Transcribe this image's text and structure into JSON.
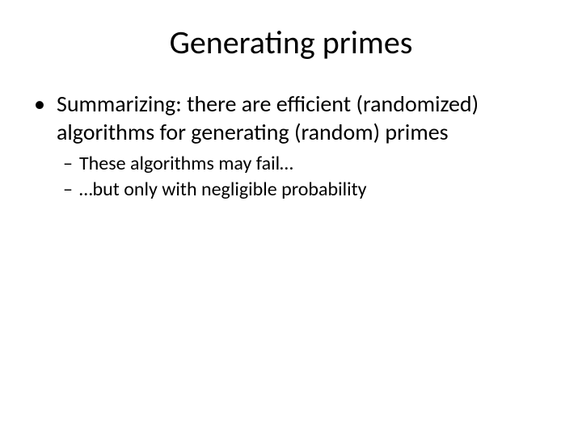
{
  "slide": {
    "title": "Generating primes",
    "title_fontsize": 40,
    "title_color": "#000000",
    "background_color": "#ffffff",
    "bullets": [
      {
        "marker": "•",
        "text": "Summarizing: there are efficient (randomized) algorithms for generating (random) primes",
        "fontsize": 28,
        "subbullets": [
          {
            "marker": "–",
            "text": "These algorithms may fail…",
            "fontsize": 24
          },
          {
            "marker": "–",
            "text": "…but only with negligible probability",
            "fontsize": 24
          }
        ]
      }
    ]
  }
}
